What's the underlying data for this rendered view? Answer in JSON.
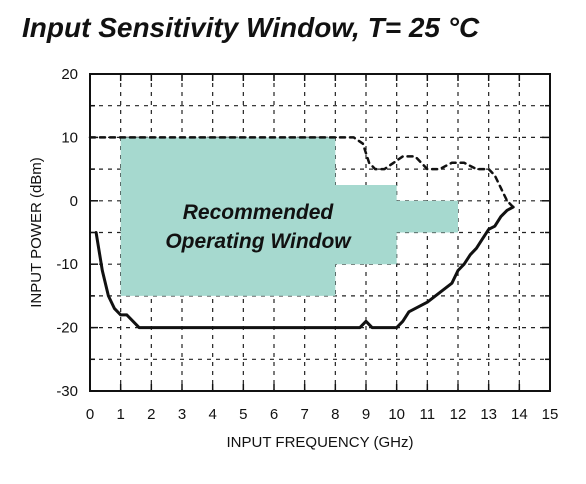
{
  "chart_data": {
    "type": "line",
    "title": "Input Sensitivity Window, T= 25 °C",
    "xlabel": "INPUT FREQUENCY (GHz)",
    "ylabel": "INPUT POWER (dBm)",
    "xlim": [
      0,
      15
    ],
    "ylim": [
      -30,
      20
    ],
    "xticks": [
      "0",
      "1",
      "2",
      "3",
      "4",
      "5",
      "6",
      "7",
      "8",
      "9",
      "10",
      "11",
      "12",
      "13",
      "14",
      "15"
    ],
    "yticks": [
      "20",
      "10",
      "0",
      "-10",
      "-20",
      "-30"
    ],
    "grid": true,
    "annotation": [
      "Recommended",
      "Operating Window"
    ],
    "window_color": "#a6d9cf",
    "window_region": [
      [
        1,
        10
      ],
      [
        8,
        10
      ],
      [
        8,
        2.5
      ],
      [
        10,
        2.5
      ],
      [
        10,
        0
      ],
      [
        12,
        0
      ],
      [
        12,
        -5
      ],
      [
        10,
        -5
      ],
      [
        10,
        -10
      ],
      [
        8,
        -10
      ],
      [
        8,
        -15
      ],
      [
        1,
        -15
      ]
    ],
    "series": [
      {
        "style": "solid",
        "x": [
          0.2,
          0.4,
          0.6,
          0.8,
          1.0,
          1.2,
          1.6,
          2,
          4,
          6,
          8,
          8.8,
          9.0,
          9.2,
          9.6,
          10,
          10.2,
          10.4,
          10.6,
          11,
          11.4,
          11.8,
          12,
          12.2,
          12.4,
          12.6,
          12.8,
          13,
          13.2,
          13.4,
          13.6,
          13.8
        ],
        "y": [
          -5,
          -11,
          -15,
          -17,
          -18,
          -18,
          -20,
          -20,
          -20,
          -20,
          -20,
          -20,
          -19,
          -20,
          -20,
          -20,
          -19,
          -17.5,
          -17,
          -16,
          -14.5,
          -13,
          -11,
          -10,
          -8.5,
          -7.5,
          -6,
          -4.5,
          -4,
          -2.5,
          -1.5,
          -1
        ]
      },
      {
        "style": "dashed",
        "x": [
          0,
          2,
          4,
          6,
          8,
          8.6,
          8.9,
          9.1,
          9.3,
          9.6,
          9.9,
          10.2,
          10.6,
          11,
          11.4,
          11.8,
          12.2,
          12.6,
          13,
          13.2,
          13.4,
          13.6,
          13.8
        ],
        "y": [
          10,
          10,
          10,
          10,
          10,
          10,
          9,
          6,
          5,
          5,
          6,
          7,
          7,
          5,
          5,
          6,
          6,
          5,
          5,
          4,
          2,
          0,
          -1
        ]
      }
    ]
  }
}
